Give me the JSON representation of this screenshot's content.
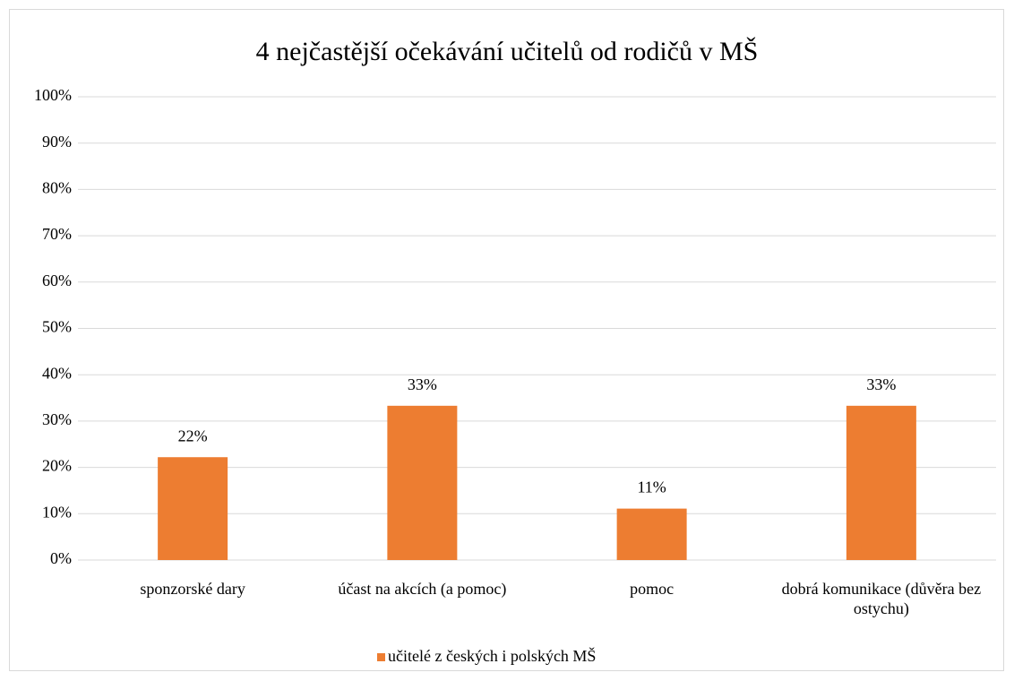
{
  "chart_data": {
    "type": "bar",
    "title": "4 nejčastější očekávání učitelů od rodičů v MŠ",
    "categories": [
      "sponzorské dary",
      "účast na akcích (a pomoc)",
      "pomoc",
      "dobrá komunikace (důvěra bez ostychu)"
    ],
    "series": [
      {
        "name": "učitelé z českých i polských MŠ",
        "color": "#ed7d31",
        "values": [
          22.2,
          33.3,
          11.1,
          33.3
        ],
        "value_labels": [
          "22%",
          "33%",
          "11%",
          "33%"
        ]
      }
    ],
    "ylim": [
      0,
      100
    ],
    "yticks": [
      {
        "value": 0,
        "label": "0%"
      },
      {
        "value": 10,
        "label": "10%"
      },
      {
        "value": 20,
        "label": "20%"
      },
      {
        "value": 30,
        "label": "30%"
      },
      {
        "value": 40,
        "label": "40%"
      },
      {
        "value": 50,
        "label": "50%"
      },
      {
        "value": 60,
        "label": "60%"
      },
      {
        "value": 70,
        "label": "70%"
      },
      {
        "value": 80,
        "label": "80%"
      },
      {
        "value": 90,
        "label": "90%"
      },
      {
        "value": 100,
        "label": "100%"
      }
    ],
    "grid": true,
    "legend": "bottom"
  }
}
